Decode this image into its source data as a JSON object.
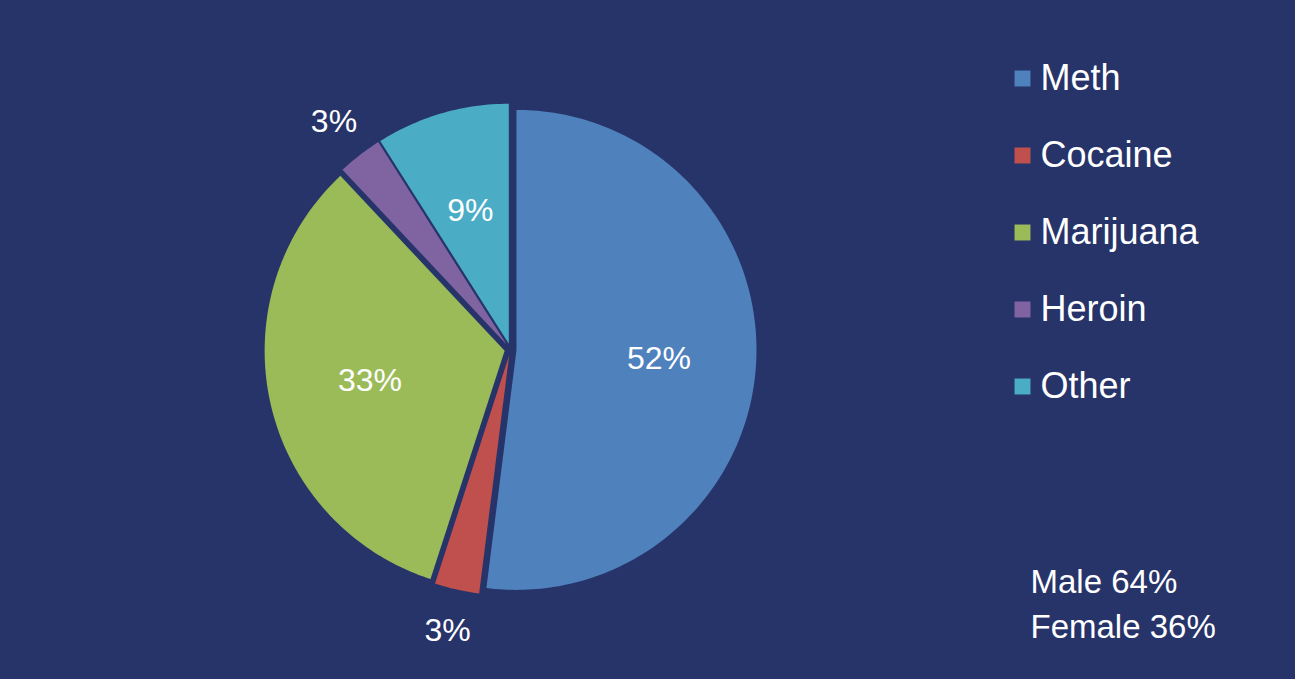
{
  "chart_data": {
    "type": "pie",
    "categories": [
      "Meth",
      "Cocaine",
      "Marijuana",
      "Heroin",
      "Other"
    ],
    "values": [
      52,
      3,
      33,
      3,
      9
    ],
    "value_labels": [
      "52%",
      "3%",
      "33%",
      "3%",
      "9%"
    ],
    "colors": [
      "#4f81bd",
      "#c0504d",
      "#9bbb59",
      "#8064a2",
      "#4bacc6"
    ],
    "data_labels": true,
    "legend": "right",
    "annotations": [
      "Male 64%",
      "Female 36%"
    ]
  }
}
